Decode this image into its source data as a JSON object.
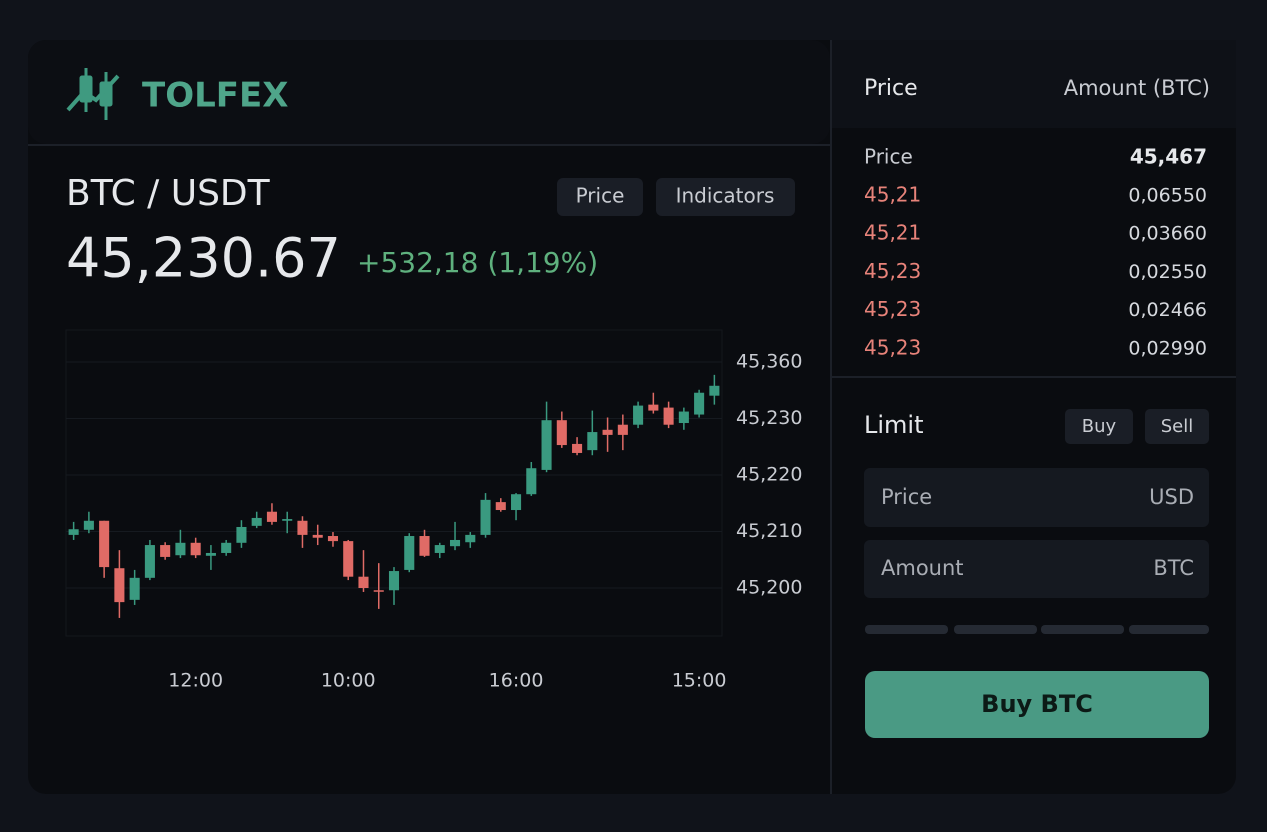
{
  "brand": "TOLFEX",
  "pair": "BTC / USDT",
  "tabs": [
    "Price",
    "Indicators"
  ],
  "last_price": "45,230.67",
  "change": "+532,18 (1,19%)",
  "order_book": {
    "headers": [
      "Price",
      "Amount (BTC)"
    ],
    "summary": [
      "Price",
      "45,467"
    ],
    "rows": [
      [
        "45,21",
        "0,06550"
      ],
      [
        "45,21",
        "0,03660"
      ],
      [
        "45,23",
        "0,02550"
      ],
      [
        "45,23",
        "0,02466"
      ],
      [
        "45,23",
        "0,02990"
      ]
    ]
  },
  "order_form": {
    "title": "Limit",
    "sides": [
      "Buy",
      "Sell"
    ],
    "fields": [
      {
        "label": "Price",
        "unit": "USD"
      },
      {
        "label": "Amount",
        "unit": "BTC"
      }
    ],
    "submit": "Buy BTC"
  },
  "chart_data": {
    "type": "candlestick",
    "categories": [
      null,
      null,
      null,
      null,
      null,
      null,
      null,
      null,
      "12:00",
      null,
      null,
      null,
      null,
      null,
      null,
      null,
      null,
      null,
      "10:00",
      null,
      null,
      null,
      null,
      null,
      null,
      null,
      null,
      null,
      null,
      "16:00",
      null,
      null,
      null,
      null,
      null,
      null,
      null,
      null,
      null,
      null,
      null,
      "15:00",
      null
    ],
    "open": [
      45209.4,
      45210.3,
      45211.9,
      45203.5,
      45197.9,
      45201.8,
      45207.6,
      45205.8,
      45208.0,
      45205.7,
      45206.2,
      45208.0,
      45211.0,
      45213.5,
      45211.9,
      45211.9,
      45209.4,
      45209.2,
      45208.3,
      45202.0,
      45199.6,
      45199.6,
      45203.2,
      45209.2,
      45206.2,
      45207.4,
      45208.1,
      45209.4,
      45215.2,
      45213.8,
      45216.6,
      45220.9,
      45229.7,
      45225.5,
      45224.4,
      45228.0,
      45228.9,
      45228.9,
      45261.9,
      45255.1,
      45229.2,
      45239.1,
      45282.5
    ],
    "high": [
      45211.7,
      45213.5,
      45211.9,
      45206.7,
      45203.2,
      45208.5,
      45208.1,
      45210.3,
      45208.9,
      45207.6,
      45208.5,
      45212.0,
      45213.5,
      45215.0,
      45213.5,
      45212.7,
      45211.2,
      45209.9,
      45208.5,
      45206.7,
      45204.4,
      45203.7,
      45209.7,
      45210.3,
      45208.0,
      45211.7,
      45209.9,
      45216.8,
      45215.9,
      45216.8,
      45222.3,
      45268.8,
      45246.0,
      45226.7,
      45248.2,
      45232.3,
      45239.1,
      45268.8,
      45289.3,
      45268.8,
      45255.1,
      45296.1,
      45330.4
    ],
    "low": [
      45208.5,
      45209.7,
      45201.8,
      45194.7,
      45197.0,
      45201.4,
      45205.0,
      45205.3,
      45205.3,
      45203.2,
      45205.7,
      45207.1,
      45210.6,
      45211.2,
      45209.7,
      45207.1,
      45207.6,
      45207.3,
      45201.4,
      45199.3,
      45196.3,
      45197.0,
      45202.8,
      45205.5,
      45205.3,
      45206.7,
      45207.1,
      45208.9,
      45213.5,
      45212.0,
      45216.3,
      45220.5,
      45224.8,
      45223.5,
      45223.5,
      45224.1,
      45224.4,
      45228.3,
      45241.4,
      45228.3,
      45228.0,
      45232.3,
      45261.9
    ],
    "close": [
      45210.4,
      45211.9,
      45203.7,
      45197.5,
      45201.8,
      45207.6,
      45205.5,
      45208.0,
      45205.8,
      45206.2,
      45208.0,
      45210.8,
      45212.4,
      45211.7,
      45212.2,
      45209.4,
      45208.9,
      45208.3,
      45202.0,
      45200.0,
      45199.5,
      45203.0,
      45209.2,
      45205.7,
      45207.6,
      45208.5,
      45209.4,
      45215.6,
      45213.8,
      45216.6,
      45221.2,
      45229.7,
      45225.3,
      45223.9,
      45227.6,
      45227.1,
      45227.1,
      45259.7,
      45248.2,
      45228.9,
      45246.0,
      45289.3,
      45305.3
    ],
    "up_color": "#3a9a80",
    "down_color": "#e06b66",
    "ylim": [
      45191.5,
      45433
    ],
    "yticks": [
      {
        "value": 45200,
        "label": "45,200"
      },
      {
        "value": 45210,
        "label": "45,210"
      },
      {
        "value": 45220,
        "label": "45,220"
      },
      {
        "value": 45230,
        "label": "45,230"
      },
      {
        "value": 45360,
        "label": "45,360"
      }
    ],
    "grid": true
  }
}
